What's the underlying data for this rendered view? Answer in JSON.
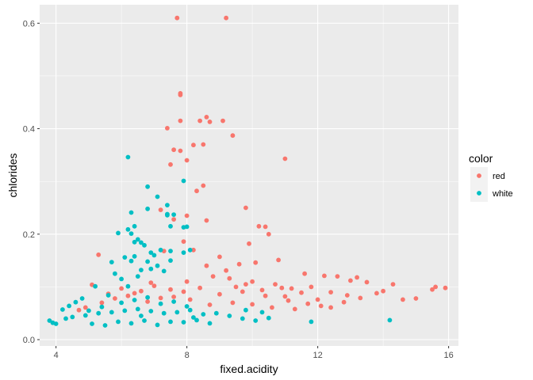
{
  "chart_data": {
    "type": "scatter",
    "title": "",
    "xlabel": "fixed.acidity",
    "ylabel": "chlorides",
    "xlim": [
      3.5,
      16.3
    ],
    "ylim": [
      -0.012,
      0.635
    ],
    "xticks": [
      4,
      8,
      12,
      16
    ],
    "yticks": [
      0.0,
      0.2,
      0.4,
      0.6
    ],
    "xtick_labels": [
      "4",
      "8",
      "12",
      "16"
    ],
    "ytick_labels": [
      "0.0",
      "0.2",
      "0.4",
      "0.6"
    ],
    "grid": true,
    "legend": {
      "title": "color",
      "position": "right"
    },
    "series": [
      {
        "name": "red",
        "color": "#F8766D",
        "points": [
          [
            7.7,
            0.61
          ],
          [
            9.2,
            0.61
          ],
          [
            7.8,
            0.467
          ],
          [
            7.8,
            0.464
          ],
          [
            8.6,
            0.422
          ],
          [
            8.4,
            0.415
          ],
          [
            8.7,
            0.413
          ],
          [
            9.1,
            0.415
          ],
          [
            7.8,
            0.415
          ],
          [
            7.4,
            0.401
          ],
          [
            9.4,
            0.387
          ],
          [
            8.5,
            0.37
          ],
          [
            8.2,
            0.369
          ],
          [
            7.6,
            0.36
          ],
          [
            7.8,
            0.358
          ],
          [
            7.5,
            0.332
          ],
          [
            8.0,
            0.34
          ],
          [
            11.0,
            0.343
          ],
          [
            8.3,
            0.282
          ],
          [
            8.5,
            0.292
          ],
          [
            7.2,
            0.246
          ],
          [
            7.6,
            0.228
          ],
          [
            9.8,
            0.25
          ],
          [
            8.0,
            0.235
          ],
          [
            10.2,
            0.215
          ],
          [
            10.4,
            0.214
          ],
          [
            8.6,
            0.226
          ],
          [
            7.9,
            0.186
          ],
          [
            10.5,
            0.2
          ],
          [
            9.9,
            0.182
          ],
          [
            8.2,
            0.17
          ],
          [
            7.3,
            0.168
          ],
          [
            5.3,
            0.161
          ],
          [
            9.0,
            0.157
          ],
          [
            10.8,
            0.151
          ],
          [
            10.1,
            0.146
          ],
          [
            9.6,
            0.143
          ],
          [
            8.6,
            0.14
          ],
          [
            9.2,
            0.131
          ],
          [
            11.6,
            0.125
          ],
          [
            12.2,
            0.121
          ],
          [
            12.6,
            0.12
          ],
          [
            13.2,
            0.118
          ],
          [
            13.5,
            0.109
          ],
          [
            14.3,
            0.105
          ],
          [
            13.0,
            0.112
          ],
          [
            15.5,
            0.095
          ],
          [
            15.6,
            0.1
          ],
          [
            15.9,
            0.098
          ],
          [
            15.0,
            0.078
          ],
          [
            14.6,
            0.076
          ],
          [
            14.0,
            0.092
          ],
          [
            13.8,
            0.088
          ],
          [
            12.9,
            0.084
          ],
          [
            12.4,
            0.09
          ],
          [
            11.8,
            0.1
          ],
          [
            11.2,
            0.097
          ],
          [
            10.7,
            0.105
          ],
          [
            10.0,
            0.11
          ],
          [
            9.5,
            0.1
          ],
          [
            5.1,
            0.104
          ],
          [
            5.6,
            0.087
          ],
          [
            6.0,
            0.097
          ],
          [
            6.4,
            0.088
          ],
          [
            7.0,
            0.102
          ],
          [
            7.5,
            0.095
          ],
          [
            8.0,
            0.11
          ],
          [
            8.8,
            0.12
          ],
          [
            9.3,
            0.116
          ],
          [
            9.8,
            0.105
          ],
          [
            10.3,
            0.094
          ],
          [
            11.0,
            0.082
          ],
          [
            11.5,
            0.089
          ],
          [
            12.0,
            0.076
          ],
          [
            12.8,
            0.071
          ],
          [
            13.3,
            0.079
          ],
          [
            12.1,
            0.064
          ],
          [
            11.3,
            0.058
          ],
          [
            10.6,
            0.061
          ],
          [
            10.0,
            0.067
          ],
          [
            9.4,
            0.07
          ],
          [
            8.7,
            0.066
          ],
          [
            8.1,
            0.076
          ],
          [
            7.6,
            0.081
          ],
          [
            7.2,
            0.079
          ],
          [
            6.8,
            0.072
          ],
          [
            6.2,
            0.083
          ],
          [
            5.8,
            0.078
          ],
          [
            4.7,
            0.056
          ],
          [
            4.9,
            0.061
          ],
          [
            5.4,
            0.07
          ],
          [
            9.0,
            0.086
          ],
          [
            9.7,
            0.091
          ],
          [
            10.4,
            0.083
          ],
          [
            11.1,
            0.074
          ],
          [
            11.7,
            0.068
          ],
          [
            12.4,
            0.061
          ],
          [
            10.9,
            0.098
          ],
          [
            8.4,
            0.098
          ],
          [
            7.9,
            0.091
          ],
          [
            6.6,
            0.092
          ],
          [
            6.9,
            0.108
          ]
        ]
      },
      {
        "name": "white",
        "color": "#00BFC4",
        "points": [
          [
            6.2,
            0.346
          ],
          [
            7.9,
            0.301
          ],
          [
            6.8,
            0.29
          ],
          [
            7.1,
            0.271
          ],
          [
            6.8,
            0.248
          ],
          [
            7.4,
            0.255
          ],
          [
            7.4,
            0.238
          ],
          [
            7.6,
            0.237
          ],
          [
            6.3,
            0.241
          ],
          [
            6.2,
            0.209
          ],
          [
            6.3,
            0.201
          ],
          [
            6.4,
            0.215
          ],
          [
            5.9,
            0.202
          ],
          [
            7.5,
            0.215
          ],
          [
            7.9,
            0.213
          ],
          [
            8.0,
            0.214
          ],
          [
            7.4,
            0.236
          ],
          [
            6.4,
            0.185
          ],
          [
            6.5,
            0.19
          ],
          [
            6.6,
            0.184
          ],
          [
            6.7,
            0.179
          ],
          [
            6.9,
            0.165
          ],
          [
            7.2,
            0.17
          ],
          [
            7.5,
            0.15
          ],
          [
            7.0,
            0.16
          ],
          [
            6.4,
            0.158
          ],
          [
            6.1,
            0.156
          ],
          [
            5.7,
            0.147
          ],
          [
            6.3,
            0.149
          ],
          [
            6.8,
            0.148
          ],
          [
            7.1,
            0.14
          ],
          [
            7.5,
            0.168
          ],
          [
            8.1,
            0.17
          ],
          [
            7.9,
            0.165
          ],
          [
            6.6,
            0.132
          ],
          [
            6.9,
            0.134
          ],
          [
            5.8,
            0.125
          ],
          [
            6.0,
            0.115
          ],
          [
            6.5,
            0.12
          ],
          [
            7.3,
            0.13
          ],
          [
            6.2,
            0.101
          ],
          [
            5.2,
            0.101
          ],
          [
            5.6,
            0.084
          ],
          [
            4.8,
            0.078
          ],
          [
            4.6,
            0.071
          ],
          [
            4.4,
            0.064
          ],
          [
            4.2,
            0.057
          ],
          [
            3.9,
            0.032
          ],
          [
            3.8,
            0.036
          ],
          [
            4.0,
            0.03
          ],
          [
            4.3,
            0.04
          ],
          [
            4.5,
            0.043
          ],
          [
            4.9,
            0.046
          ],
          [
            5.3,
            0.05
          ],
          [
            5.7,
            0.052
          ],
          [
            6.1,
            0.055
          ],
          [
            6.5,
            0.058
          ],
          [
            6.9,
            0.054
          ],
          [
            7.3,
            0.05
          ],
          [
            7.7,
            0.052
          ],
          [
            8.1,
            0.056
          ],
          [
            8.5,
            0.048
          ],
          [
            8.9,
            0.05
          ],
          [
            9.3,
            0.045
          ],
          [
            9.7,
            0.04
          ],
          [
            10.1,
            0.036
          ],
          [
            10.5,
            0.041
          ],
          [
            5.1,
            0.03
          ],
          [
            5.5,
            0.027
          ],
          [
            5.9,
            0.034
          ],
          [
            6.3,
            0.031
          ],
          [
            6.7,
            0.036
          ],
          [
            7.1,
            0.028
          ],
          [
            7.5,
            0.034
          ],
          [
            7.9,
            0.033
          ],
          [
            8.3,
            0.037
          ],
          [
            8.7,
            0.031
          ],
          [
            6.0,
            0.07
          ],
          [
            6.4,
            0.075
          ],
          [
            6.8,
            0.08
          ],
          [
            7.2,
            0.068
          ],
          [
            7.6,
            0.072
          ],
          [
            8.0,
            0.063
          ],
          [
            5.0,
            0.055
          ],
          [
            5.4,
            0.062
          ],
          [
            11.8,
            0.034
          ],
          [
            14.2,
            0.037
          ],
          [
            9.8,
            0.056
          ],
          [
            10.3,
            0.052
          ],
          [
            8.2,
            0.042
          ],
          [
            6.6,
            0.045
          ]
        ]
      }
    ]
  }
}
